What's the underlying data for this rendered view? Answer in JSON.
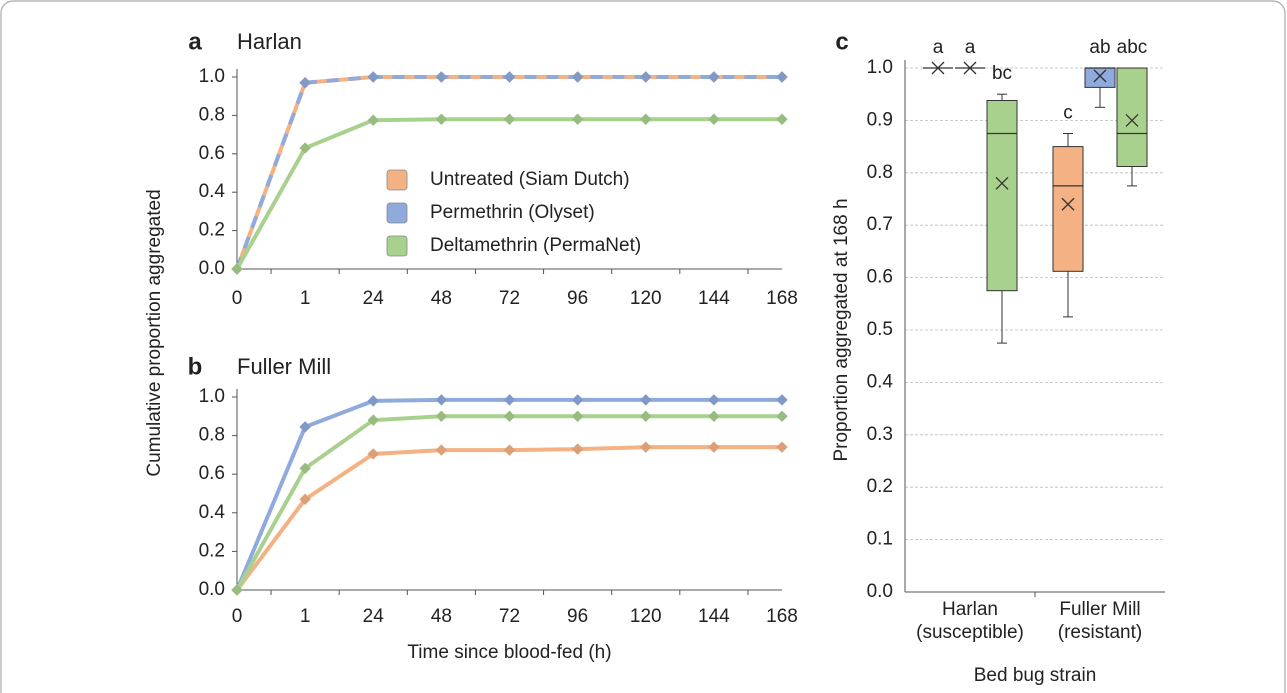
{
  "chart_data": [
    {
      "type": "line",
      "panel": "a",
      "title": "Harlan",
      "ylabel": "Cumulative proportion aggregated",
      "categories": [
        "0",
        "1",
        "24",
        "48",
        "72",
        "96",
        "120",
        "144",
        "168"
      ],
      "ylim": [
        0,
        1
      ],
      "yticks": [
        {
          "value": 0,
          "label": "0.0"
        },
        0.2,
        0.4,
        0.6,
        0.8,
        {
          "value": 1,
          "label": "1.0"
        }
      ],
      "grid": false,
      "legend": "center",
      "series": [
        {
          "name": "Untreated (Siam Dutch)",
          "color": "#f4b183",
          "values": [
            0,
            0.97,
            1.0,
            1.0,
            1.0,
            1.0,
            1.0,
            1.0,
            1.0
          ]
        },
        {
          "name": "Permethrin (Olyset)",
          "color": "#8faadc",
          "dashed": true,
          "values": [
            0,
            0.97,
            1.0,
            1.0,
            1.0,
            1.0,
            1.0,
            1.0,
            1.0
          ]
        },
        {
          "name": "Deltamethrin (PermaNet)",
          "color": "#a9d18e",
          "values": [
            0,
            0.63,
            0.775,
            0.78,
            0.78,
            0.78,
            0.78,
            0.78,
            0.78
          ]
        }
      ]
    },
    {
      "type": "line",
      "panel": "b",
      "title": "Fuller Mill",
      "xlabel": "Time since blood-fed (h)",
      "categories": [
        "0",
        "1",
        "24",
        "48",
        "72",
        "96",
        "120",
        "144",
        "168"
      ],
      "ylim": [
        0,
        1
      ],
      "yticks": [
        {
          "value": 0,
          "label": "0.0"
        },
        0.2,
        0.4,
        0.6,
        0.8,
        {
          "value": 1,
          "label": "1.0"
        }
      ],
      "grid": false,
      "series": [
        {
          "color": "#f4b183",
          "values": [
            0,
            0.47,
            0.705,
            0.725,
            0.725,
            0.73,
            0.74,
            0.74,
            0.74
          ]
        },
        {
          "color": "#8faadc",
          "values": [
            0,
            0.845,
            0.98,
            0.985,
            0.985,
            0.985,
            0.985,
            0.985,
            0.985
          ]
        },
        {
          "color": "#a9d18e",
          "values": [
            0,
            0.63,
            0.88,
            0.9,
            0.9,
            0.9,
            0.9,
            0.9,
            0.9
          ]
        }
      ]
    },
    {
      "type": "box",
      "panel": "c",
      "ylabel": "Proportion aggregated at 168 h",
      "xlabel": "Bed bug strain",
      "categories": [
        [
          "Harlan",
          "(susceptible)"
        ],
        [
          "Fuller Mill",
          "(resistant)"
        ]
      ],
      "ylim": [
        0,
        1
      ],
      "yticks": [
        {
          "value": 0,
          "label": "0.0"
        },
        0.1,
        0.2,
        0.3,
        0.4,
        0.5,
        0.6,
        0.7,
        0.8,
        0.9,
        {
          "value": 1,
          "label": "1.0"
        }
      ],
      "grid": true,
      "series": [
        {
          "color": "#f4b183",
          "boxes": [
            {
              "min": 1.0,
              "q1": 1.0,
              "median": 1.0,
              "q3": 1.0,
              "max": 1.0,
              "mean": 1.0,
              "label": "a"
            },
            {
              "min": 0.525,
              "q1": 0.612,
              "median": 0.775,
              "q3": 0.85,
              "max": 0.875,
              "mean": 0.74,
              "label": "c"
            }
          ]
        },
        {
          "color": "#8faadc",
          "boxes": [
            {
              "min": 1.0,
              "q1": 1.0,
              "median": 1.0,
              "q3": 1.0,
              "max": 1.0,
              "mean": 1.0,
              "label": "a"
            },
            {
              "min": 0.925,
              "q1": 0.963,
              "median": 1.0,
              "q3": 1.0,
              "max": 1.0,
              "mean": 0.985,
              "label": "ab"
            }
          ]
        },
        {
          "color": "#a9d18e",
          "boxes": [
            {
              "min": 0.475,
              "q1": 0.575,
              "median": 0.875,
              "q3": 0.938,
              "max": 0.95,
              "mean": 0.78,
              "label": "bc"
            },
            {
              "min": 0.775,
              "q1": 0.812,
              "median": 0.875,
              "q3": 1.0,
              "max": 1.0,
              "mean": 0.9,
              "label": "abc"
            }
          ]
        }
      ]
    }
  ]
}
